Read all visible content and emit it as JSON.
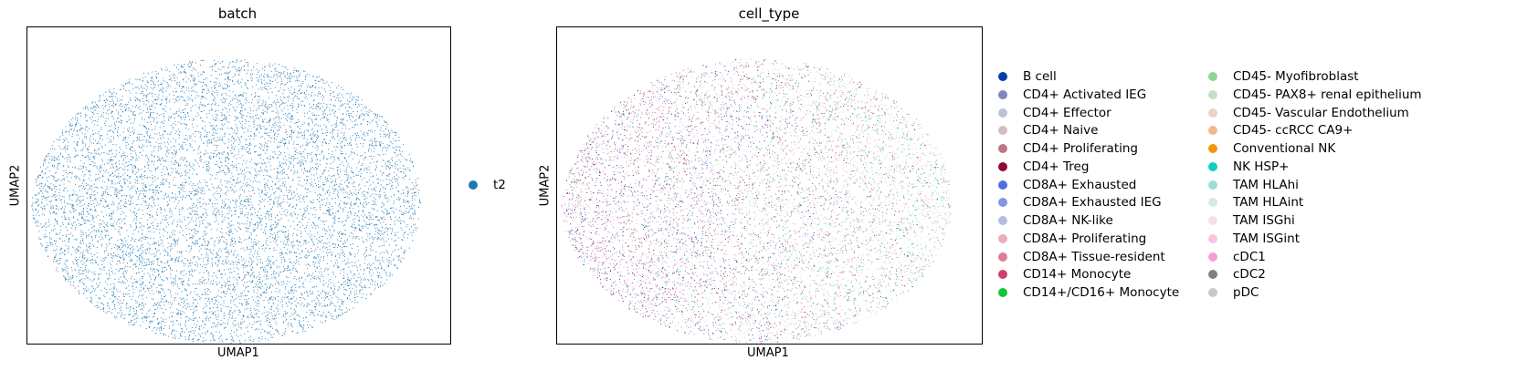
{
  "chart_data": [
    {
      "type": "scatter",
      "title": "batch",
      "xlabel": "UMAP1",
      "ylabel": "UMAP2",
      "grid": false,
      "legend_placement": "right",
      "categories": [
        {
          "name": "t2",
          "color": "#1f77b4"
        }
      ]
    },
    {
      "type": "scatter",
      "title": "cell_type",
      "xlabel": "UMAP1",
      "ylabel": "UMAP2",
      "grid": false,
      "legend_placement": "right, two columns",
      "categories": [
        {
          "name": "B cell",
          "color": "#023fa5"
        },
        {
          "name": "CD4+ Activated IEG",
          "color": "#7d87b9"
        },
        {
          "name": "CD4+ Effector",
          "color": "#bec1d4"
        },
        {
          "name": "CD4+ Naive",
          "color": "#d6bcc0"
        },
        {
          "name": "CD4+ Proliferating",
          "color": "#bb7784"
        },
        {
          "name": "CD4+ Treg",
          "color": "#8e063b"
        },
        {
          "name": "CD8A+ Exhausted",
          "color": "#4a6fe3"
        },
        {
          "name": "CD8A+ Exhausted IEG",
          "color": "#8595e1"
        },
        {
          "name": "CD8A+ NK-like",
          "color": "#b5bbe3"
        },
        {
          "name": "CD8A+ Proliferating",
          "color": "#e6afb9"
        },
        {
          "name": "CD8A+ Tissue-resident",
          "color": "#e07b91"
        },
        {
          "name": "CD14+ Monocyte",
          "color": "#d33f6a"
        },
        {
          "name": "CD14+/CD16+ Monocyte",
          "color": "#11c638"
        },
        {
          "name": "CD45- Myofibroblast",
          "color": "#8dd593"
        },
        {
          "name": "CD45- PAX8+ renal epithelium",
          "color": "#c6dec7"
        },
        {
          "name": "CD45- Vascular Endothelium",
          "color": "#ead3c6"
        },
        {
          "name": "CD45- ccRCC CA9+",
          "color": "#f0b98d"
        },
        {
          "name": "Conventional NK",
          "color": "#ef9708"
        },
        {
          "name": "NK HSP+",
          "color": "#0fcfc0"
        },
        {
          "name": "TAM HLAhi",
          "color": "#9cded6"
        },
        {
          "name": "TAM HLAint",
          "color": "#d5eae7"
        },
        {
          "name": "TAM ISGhi",
          "color": "#f3e1eb"
        },
        {
          "name": "TAM ISGint",
          "color": "#f6c4e1"
        },
        {
          "name": "cDC1",
          "color": "#f79cd4"
        },
        {
          "name": "cDC2",
          "color": "#7f7f7f"
        },
        {
          "name": "pDC",
          "color": "#c7c7c7"
        }
      ]
    }
  ]
}
